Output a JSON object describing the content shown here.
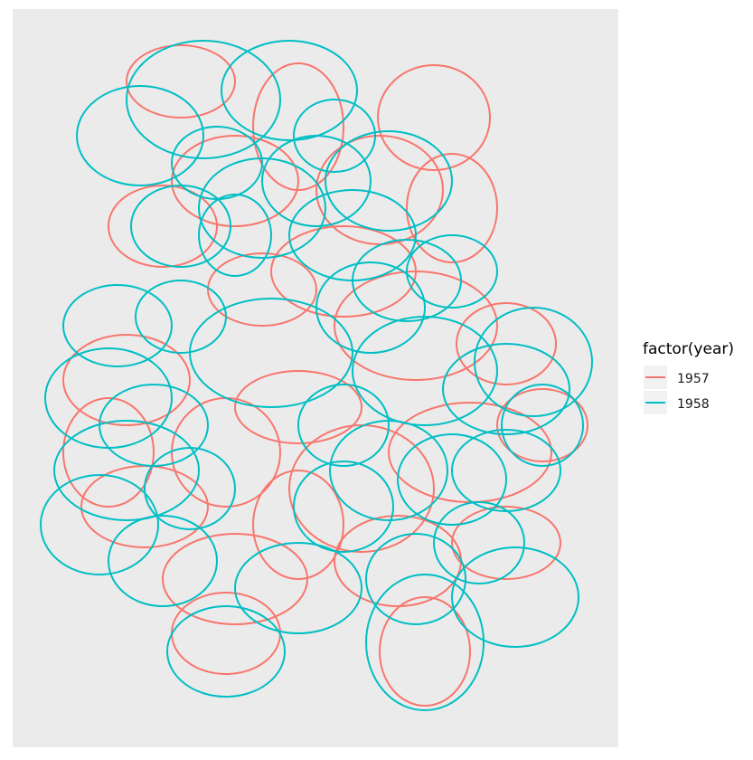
{
  "chart_data": {
    "type": "line",
    "title": "",
    "xlabel": "",
    "ylabel": "",
    "grid": false,
    "axes": "hidden",
    "legend_position": "right",
    "legend": {
      "title": "factor(year)",
      "entries": [
        {
          "label": "1957",
          "color": "#F8766D"
        },
        {
          "label": "1958",
          "color": "#00BFC4"
        }
      ]
    },
    "series": [
      {
        "name": "1957",
        "color": "#F8766D",
        "loops": [
          [
            480,
            130,
            62,
            58
          ],
          [
            200,
            90,
            60,
            40
          ],
          [
            330,
            140,
            50,
            70
          ],
          [
            260,
            200,
            70,
            50
          ],
          [
            420,
            210,
            70,
            60
          ],
          [
            180,
            250,
            60,
            45
          ],
          [
            500,
            230,
            50,
            60
          ],
          [
            380,
            300,
            80,
            50
          ],
          [
            290,
            320,
            60,
            40
          ],
          [
            460,
            360,
            90,
            60
          ],
          [
            560,
            380,
            55,
            45
          ],
          [
            140,
            420,
            70,
            50
          ],
          [
            330,
            450,
            70,
            40
          ],
          [
            250,
            500,
            60,
            60
          ],
          [
            400,
            540,
            80,
            70
          ],
          [
            520,
            500,
            90,
            55
          ],
          [
            600,
            470,
            50,
            40
          ],
          [
            160,
            560,
            70,
            45
          ],
          [
            330,
            580,
            50,
            60
          ],
          [
            260,
            640,
            80,
            50
          ],
          [
            440,
            620,
            70,
            50
          ],
          [
            470,
            720,
            50,
            60
          ],
          [
            250,
            700,
            60,
            45
          ],
          [
            560,
            600,
            60,
            40
          ],
          [
            120,
            500,
            50,
            60
          ]
        ]
      },
      {
        "name": "1958",
        "color": "#00BFC4",
        "loops": [
          [
            225,
            110,
            85,
            65
          ],
          [
            320,
            100,
            75,
            55
          ],
          [
            155,
            150,
            70,
            55
          ],
          [
            370,
            150,
            45,
            40
          ],
          [
            240,
            180,
            50,
            40
          ],
          [
            290,
            230,
            70,
            55
          ],
          [
            350,
            200,
            60,
            50
          ],
          [
            200,
            250,
            55,
            45
          ],
          [
            260,
            260,
            40,
            45
          ],
          [
            430,
            200,
            70,
            55
          ],
          [
            390,
            260,
            70,
            50
          ],
          [
            450,
            310,
            60,
            45
          ],
          [
            500,
            300,
            50,
            40
          ],
          [
            130,
            360,
            60,
            45
          ],
          [
            200,
            350,
            50,
            40
          ],
          [
            300,
            390,
            90,
            60
          ],
          [
            410,
            340,
            60,
            50
          ],
          [
            470,
            410,
            80,
            60
          ],
          [
            560,
            430,
            70,
            50
          ],
          [
            600,
            470,
            45,
            45
          ],
          [
            120,
            440,
            70,
            55
          ],
          [
            170,
            470,
            60,
            45
          ],
          [
            140,
            520,
            80,
            55
          ],
          [
            210,
            540,
            50,
            45
          ],
          [
            380,
            470,
            50,
            45
          ],
          [
            430,
            520,
            65,
            55
          ],
          [
            380,
            560,
            55,
            50
          ],
          [
            500,
            530,
            60,
            50
          ],
          [
            560,
            520,
            60,
            45
          ],
          [
            460,
            640,
            55,
            50
          ],
          [
            570,
            660,
            70,
            55
          ],
          [
            530,
            600,
            50,
            45
          ],
          [
            250,
            720,
            65,
            50
          ],
          [
            330,
            650,
            70,
            50
          ],
          [
            470,
            710,
            65,
            75
          ],
          [
            110,
            580,
            65,
            55
          ],
          [
            180,
            620,
            60,
            50
          ],
          [
            590,
            400,
            65,
            60
          ]
        ]
      }
    ]
  }
}
